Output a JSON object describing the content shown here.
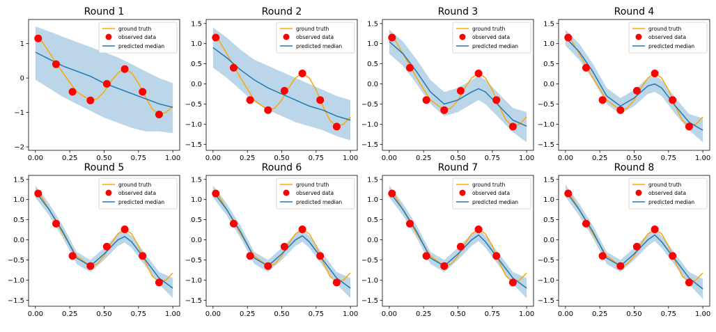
{
  "figure": {
    "legend_labels": [
      "ground truth",
      "observed data",
      "predicted median"
    ],
    "colors": {
      "ground_truth": "#ffa500",
      "observed": "#ff0000",
      "median": "#1f77b4",
      "band": "#1f77b4"
    }
  },
  "chart_data": {
    "type": "line",
    "x_ticks": [
      0.0,
      0.25,
      0.5,
      0.75,
      1.0
    ],
    "x_tick_labels": [
      "0.00",
      "0.25",
      "0.50",
      "0.75",
      "1.00"
    ],
    "xlim": [
      -0.05,
      1.05
    ],
    "legend_position": "upper right",
    "ground_truth": {
      "x": [
        0.02,
        0.1,
        0.2,
        0.3,
        0.4,
        0.45,
        0.5,
        0.55,
        0.6,
        0.65,
        0.7,
        0.75,
        0.8,
        0.85,
        0.9,
        0.95,
        1.0
      ],
      "y": [
        1.22,
        0.75,
        0.15,
        -0.4,
        -0.65,
        -0.6,
        -0.4,
        -0.1,
        0.15,
        0.26,
        0.15,
        -0.15,
        -0.55,
        -0.9,
        -1.05,
        -1.0,
        -0.82
      ]
    },
    "observed": {
      "x": [
        0.02,
        0.15,
        0.27,
        0.4,
        0.52,
        0.65,
        0.78,
        0.9
      ],
      "y": [
        1.15,
        0.4,
        -0.4,
        -0.65,
        -0.17,
        0.26,
        -0.4,
        -1.06
      ]
    },
    "panels": [
      {
        "title": "Round 1",
        "ylim": [
          -2.1,
          1.7
        ],
        "y_ticks": [
          -2,
          -1,
          0,
          1
        ],
        "y_tick_labels": [
          "−2",
          "−1",
          "0",
          "1"
        ],
        "median": {
          "x": [
            0.0,
            0.1,
            0.2,
            0.3,
            0.4,
            0.5,
            0.6,
            0.7,
            0.8,
            0.9,
            1.0
          ],
          "y": [
            0.75,
            0.55,
            0.35,
            0.2,
            0.05,
            -0.15,
            -0.3,
            -0.45,
            -0.6,
            -0.75,
            -0.85
          ]
        },
        "band": {
          "lower": [
            -0.05,
            -0.3,
            -0.55,
            -0.75,
            -0.95,
            -1.15,
            -1.3,
            -1.45,
            -1.55,
            -1.55,
            -1.6
          ],
          "upper": [
            1.5,
            1.35,
            1.2,
            1.05,
            0.9,
            0.75,
            0.6,
            0.4,
            0.2,
            0.0,
            -0.15
          ]
        }
      },
      {
        "title": "Round 2",
        "ylim": [
          -1.65,
          1.6
        ],
        "y_ticks": [
          -1.5,
          -1.0,
          -0.5,
          0.0,
          0.5,
          1.0,
          1.5
        ],
        "y_tick_labels": [
          "−1.5",
          "−1.0",
          "−0.5",
          "0.0",
          "0.5",
          "1.0",
          "1.5"
        ],
        "median": {
          "x": [
            0.0,
            0.1,
            0.2,
            0.3,
            0.4,
            0.5,
            0.6,
            0.7,
            0.8,
            0.9,
            1.0
          ],
          "y": [
            0.9,
            0.65,
            0.35,
            0.1,
            -0.1,
            -0.25,
            -0.4,
            -0.55,
            -0.65,
            -0.8,
            -0.9
          ]
        },
        "band": {
          "lower": [
            0.4,
            0.15,
            -0.15,
            -0.45,
            -0.65,
            -0.8,
            -0.95,
            -1.05,
            -1.15,
            -1.3,
            -1.4
          ],
          "upper": [
            1.4,
            1.15,
            0.85,
            0.6,
            0.45,
            0.3,
            0.15,
            0.0,
            -0.15,
            -0.3,
            -0.4
          ]
        }
      },
      {
        "title": "Round 3",
        "ylim": [
          -1.65,
          1.6
        ],
        "y_ticks": [
          -1.5,
          -1.0,
          -0.5,
          0.0,
          0.5,
          1.0,
          1.5
        ],
        "y_tick_labels": [
          "−1.5",
          "−1.0",
          "−0.5",
          "0.0",
          "0.5",
          "1.0",
          "1.5"
        ],
        "median": {
          "x": [
            0.0,
            0.1,
            0.2,
            0.3,
            0.4,
            0.5,
            0.6,
            0.65,
            0.7,
            0.8,
            0.9,
            1.0
          ],
          "y": [
            1.05,
            0.75,
            0.3,
            -0.2,
            -0.5,
            -0.4,
            -0.2,
            -0.12,
            -0.2,
            -0.55,
            -0.9,
            -1.05
          ]
        },
        "band": {
          "lower": [
            0.75,
            0.45,
            0.0,
            -0.5,
            -0.8,
            -0.7,
            -0.5,
            -0.4,
            -0.5,
            -0.85,
            -1.2,
            -1.45
          ],
          "upper": [
            1.35,
            1.05,
            0.6,
            0.1,
            -0.2,
            -0.1,
            0.1,
            0.2,
            0.1,
            -0.25,
            -0.6,
            -0.7
          ]
        }
      },
      {
        "title": "Round 4",
        "ylim": [
          -1.65,
          1.6
        ],
        "y_ticks": [
          -1.5,
          -1.0,
          -0.5,
          0.0,
          0.5,
          1.0,
          1.5
        ],
        "y_tick_labels": [
          "−1.5",
          "−1.0",
          "−0.5",
          "0.0",
          "0.5",
          "1.0",
          "1.5"
        ],
        "median": {
          "x": [
            0.0,
            0.1,
            0.2,
            0.3,
            0.4,
            0.5,
            0.6,
            0.65,
            0.7,
            0.8,
            0.9,
            1.0
          ],
          "y": [
            1.15,
            0.8,
            0.3,
            -0.3,
            -0.55,
            -0.35,
            -0.05,
            0.0,
            -0.1,
            -0.55,
            -0.95,
            -1.15
          ]
        },
        "band": {
          "lower": [
            0.95,
            0.6,
            0.1,
            -0.5,
            -0.75,
            -0.55,
            -0.25,
            -0.2,
            -0.3,
            -0.75,
            -1.15,
            -1.45
          ],
          "upper": [
            1.35,
            1.0,
            0.5,
            -0.1,
            -0.35,
            -0.15,
            0.15,
            0.2,
            0.1,
            -0.35,
            -0.75,
            -0.85
          ]
        }
      },
      {
        "title": "Round 5",
        "ylim": [
          -1.65,
          1.6
        ],
        "y_ticks": [
          -1.5,
          -1.0,
          -0.5,
          0.0,
          0.5,
          1.0,
          1.5
        ],
        "y_tick_labels": [
          "−1.5",
          "−1.0",
          "−0.5",
          "0.0",
          "0.5",
          "1.0",
          "1.5"
        ],
        "median": {
          "x": [
            0.0,
            0.1,
            0.2,
            0.3,
            0.4,
            0.5,
            0.6,
            0.65,
            0.7,
            0.8,
            0.9,
            1.0
          ],
          "y": [
            1.2,
            0.75,
            0.2,
            -0.45,
            -0.65,
            -0.35,
            0.0,
            0.08,
            -0.05,
            -0.5,
            -0.95,
            -1.2
          ]
        },
        "band": {
          "lower": [
            1.05,
            0.6,
            0.05,
            -0.6,
            -0.8,
            -0.5,
            -0.15,
            -0.07,
            -0.2,
            -0.65,
            -1.1,
            -1.45
          ],
          "upper": [
            1.35,
            0.9,
            0.35,
            -0.3,
            -0.5,
            -0.2,
            0.15,
            0.23,
            0.1,
            -0.35,
            -0.8,
            -0.95
          ]
        }
      },
      {
        "title": "Round 6",
        "ylim": [
          -1.65,
          1.6
        ],
        "y_ticks": [
          -1.5,
          -1.0,
          -0.5,
          0.0,
          0.5,
          1.0,
          1.5
        ],
        "y_tick_labels": [
          "−1.5",
          "−1.0",
          "−0.5",
          "0.0",
          "0.5",
          "1.0",
          "1.5"
        ],
        "median": {
          "x": [
            0.0,
            0.1,
            0.2,
            0.3,
            0.4,
            0.5,
            0.6,
            0.65,
            0.7,
            0.8,
            0.9,
            1.0
          ],
          "y": [
            1.2,
            0.75,
            0.2,
            -0.45,
            -0.65,
            -0.35,
            0.0,
            0.1,
            -0.05,
            -0.5,
            -0.95,
            -1.2
          ]
        },
        "band": {
          "lower": [
            1.05,
            0.6,
            0.05,
            -0.6,
            -0.8,
            -0.5,
            -0.15,
            -0.05,
            -0.2,
            -0.65,
            -1.1,
            -1.45
          ],
          "upper": [
            1.35,
            0.9,
            0.35,
            -0.3,
            -0.5,
            -0.2,
            0.15,
            0.25,
            0.1,
            -0.35,
            -0.8,
            -0.95
          ]
        }
      },
      {
        "title": "Round 7",
        "ylim": [
          -1.65,
          1.6
        ],
        "y_ticks": [
          -1.5,
          -1.0,
          -0.5,
          0.0,
          0.5,
          1.0,
          1.5
        ],
        "y_tick_labels": [
          "−1.5",
          "−1.0",
          "−0.5",
          "0.0",
          "0.5",
          "1.0",
          "1.5"
        ],
        "median": {
          "x": [
            0.0,
            0.1,
            0.2,
            0.3,
            0.4,
            0.5,
            0.6,
            0.65,
            0.7,
            0.8,
            0.9,
            1.0
          ],
          "y": [
            1.2,
            0.75,
            0.2,
            -0.45,
            -0.65,
            -0.35,
            0.0,
            0.12,
            -0.05,
            -0.5,
            -0.95,
            -1.2
          ]
        },
        "band": {
          "lower": [
            1.05,
            0.6,
            0.05,
            -0.6,
            -0.8,
            -0.5,
            -0.15,
            -0.03,
            -0.2,
            -0.65,
            -1.1,
            -1.45
          ],
          "upper": [
            1.35,
            0.9,
            0.35,
            -0.3,
            -0.5,
            -0.2,
            0.15,
            0.27,
            0.1,
            -0.35,
            -0.8,
            -0.95
          ]
        }
      },
      {
        "title": "Round 8",
        "ylim": [
          -1.65,
          1.6
        ],
        "y_ticks": [
          -1.5,
          -1.0,
          -0.5,
          0.0,
          0.5,
          1.0,
          1.5
        ],
        "y_tick_labels": [
          "−1.5",
          "−1.0",
          "−0.5",
          "0.0",
          "0.5",
          "1.0",
          "1.5"
        ],
        "median": {
          "x": [
            0.0,
            0.1,
            0.2,
            0.3,
            0.4,
            0.5,
            0.6,
            0.65,
            0.7,
            0.8,
            0.9,
            1.0
          ],
          "y": [
            1.22,
            0.75,
            0.2,
            -0.45,
            -0.65,
            -0.35,
            0.0,
            0.12,
            -0.05,
            -0.5,
            -0.95,
            -1.22
          ]
        },
        "band": {
          "lower": [
            1.07,
            0.6,
            0.05,
            -0.6,
            -0.8,
            -0.5,
            -0.15,
            -0.03,
            -0.2,
            -0.65,
            -1.1,
            -1.47
          ],
          "upper": [
            1.37,
            0.9,
            0.35,
            -0.3,
            -0.5,
            -0.2,
            0.15,
            0.27,
            0.1,
            -0.35,
            -0.8,
            -0.97
          ]
        }
      }
    ]
  }
}
